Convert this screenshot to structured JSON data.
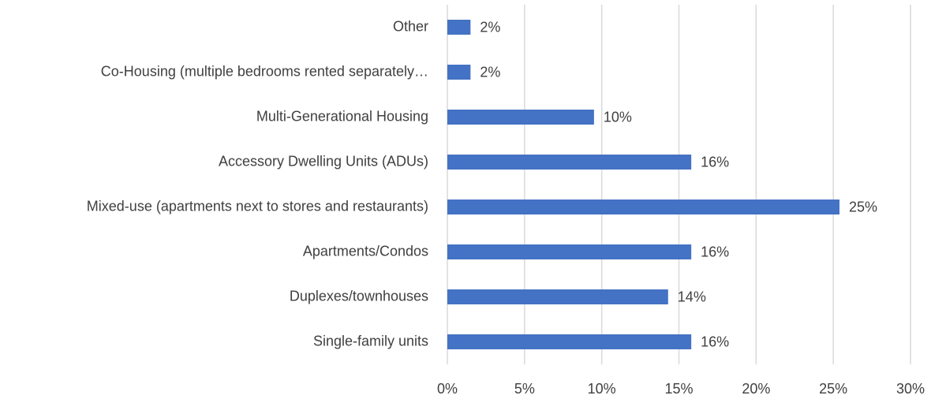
{
  "chart_data": {
    "type": "bar",
    "orientation": "horizontal",
    "categories": [
      "Other",
      "Co-Housing (multiple bedrooms rented separately…",
      "Multi-Generational Housing",
      "Accessory Dwelling Units (ADUs)",
      "Mixed-use (apartments next to stores and restaurants)",
      "Apartments/Condos",
      "Duplexes/townhouses",
      "Single-family units"
    ],
    "values": [
      1.5,
      1.5,
      9.5,
      15.8,
      25.4,
      15.8,
      14.3,
      15.8
    ],
    "value_labels": [
      "2%",
      "2%",
      "10%",
      "16%",
      "25%",
      "16%",
      "14%",
      "16%"
    ],
    "color": "#4472c4",
    "xlim": [
      0,
      30
    ],
    "xticks": [
      {
        "value": 0,
        "label": "0%"
      },
      {
        "value": 5,
        "label": "5%"
      },
      {
        "value": 10,
        "label": "10%"
      },
      {
        "value": 15,
        "label": "15%"
      },
      {
        "value": 20,
        "label": "20%"
      },
      {
        "value": 25,
        "label": "25%"
      },
      {
        "value": 30,
        "label": "30%"
      }
    ],
    "grid": true
  }
}
